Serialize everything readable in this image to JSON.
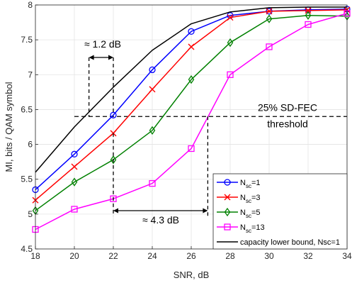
{
  "chart_data": {
    "type": "line",
    "xlabel": "SNR, dB",
    "ylabel": "MI, bits / QAM symbol",
    "xlim": [
      18,
      34
    ],
    "ylim": [
      4.5,
      8
    ],
    "xticks": [
      "18",
      "20",
      "22",
      "24",
      "26",
      "28",
      "30",
      "32",
      "34"
    ],
    "yticks": [
      "4.5",
      "5",
      "5.5",
      "6",
      "6.5",
      "7",
      "7.5",
      "8"
    ],
    "grid": true,
    "legend_position": "bottom-right",
    "series": [
      {
        "name": "N",
        "sub": "sc",
        "suffix": "=1",
        "color": "#0000ff",
        "marker": "circle",
        "x": [
          18,
          20,
          22,
          24,
          26,
          28,
          30,
          32,
          34
        ],
        "y": [
          5.35,
          5.86,
          6.42,
          7.07,
          7.62,
          7.85,
          7.91,
          7.93,
          7.94
        ]
      },
      {
        "name": "N",
        "sub": "sc",
        "suffix": "=3",
        "color": "#ff0000",
        "marker": "x",
        "x": [
          18,
          20,
          22,
          24,
          26,
          28,
          30,
          32,
          34
        ],
        "y": [
          5.2,
          5.68,
          6.16,
          6.79,
          7.4,
          7.82,
          7.91,
          7.92,
          7.93
        ]
      },
      {
        "name": "N",
        "sub": "sc",
        "suffix": "=5",
        "color": "#008000",
        "marker": "diamond",
        "x": [
          18,
          20,
          22,
          24,
          26,
          28,
          30,
          32,
          34
        ],
        "y": [
          5.05,
          5.46,
          5.78,
          6.2,
          6.93,
          7.46,
          7.8,
          7.85,
          7.84
        ]
      },
      {
        "name": "N",
        "sub": "sc",
        "suffix": "=13",
        "color": "#ff00ff",
        "marker": "square",
        "x": [
          18,
          20,
          22,
          24,
          26,
          28,
          30,
          32,
          34
        ],
        "y": [
          4.78,
          5.07,
          5.22,
          5.44,
          5.94,
          7.0,
          7.4,
          7.72,
          7.88
        ]
      },
      {
        "name": "capacity lower bound, Nsc=1",
        "sub": "",
        "suffix": "",
        "color": "#000000",
        "marker": "none",
        "x": [
          18,
          20,
          22,
          24,
          26,
          28,
          30,
          32,
          34
        ],
        "y": [
          5.6,
          6.25,
          6.82,
          7.35,
          7.73,
          7.9,
          7.96,
          7.97,
          7.97
        ]
      }
    ],
    "threshold": {
      "y": 6.4,
      "label_line1": "25% SD-FEC",
      "label_line2": "threshold"
    },
    "annotations": [
      {
        "label": "≈ 1.2 dB",
        "x1": 20.75,
        "x2": 22
      },
      {
        "label": "≈ 4.3 dB",
        "x1": 22,
        "x2": 26.85
      }
    ]
  }
}
